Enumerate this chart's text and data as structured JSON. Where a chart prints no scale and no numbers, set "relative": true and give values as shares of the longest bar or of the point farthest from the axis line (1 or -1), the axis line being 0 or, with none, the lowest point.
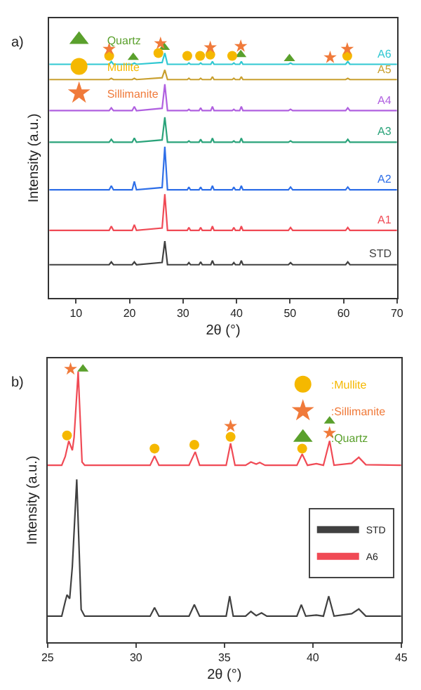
{
  "chart_data": [
    {
      "type": "line",
      "title": "a)",
      "xlabel": "2θ (°)",
      "ylabel": "Intensity (a.u.)",
      "relative": true,
      "xlim": [
        5,
        70
      ],
      "xticks": [
        10,
        20,
        30,
        40,
        50,
        60,
        70
      ],
      "legend": "top left",
      "x": [
        5,
        16.2,
        16.6,
        17,
        20.5,
        20.9,
        21.3,
        26.1,
        26.6,
        27.1,
        30.8,
        31.1,
        31.4,
        33,
        33.3,
        33.6,
        35.2,
        35.5,
        35.8,
        39.2,
        39.5,
        39.8,
        40.6,
        40.9,
        41.2,
        49.7,
        50.1,
        50.5,
        60.4,
        60.8,
        61.2,
        70
      ],
      "series": [
        {
          "name": "STD",
          "color": "#404040",
          "values": [
            0.131,
            0.131,
            0.142,
            0.131,
            0.131,
            0.142,
            0.131,
            0.14,
            0.224,
            0.131,
            0.131,
            0.139,
            0.131,
            0.131,
            0.142,
            0.131,
            0.131,
            0.147,
            0.131,
            0.131,
            0.139,
            0.131,
            0.131,
            0.147,
            0.131,
            0.131,
            0.139,
            0.131,
            0.131,
            0.142,
            0.131,
            0.131
          ]
        },
        {
          "name": "A1",
          "color": "#f04a55",
          "values": [
            0.266,
            0.266,
            0.282,
            0.266,
            0.266,
            0.288,
            0.266,
            0.275,
            0.408,
            0.266,
            0.266,
            0.277,
            0.266,
            0.266,
            0.277,
            0.266,
            0.266,
            0.282,
            0.266,
            0.266,
            0.277,
            0.266,
            0.266,
            0.282,
            0.266,
            0.266,
            0.277,
            0.266,
            0.266,
            0.277,
            0.266,
            0.266
          ]
        },
        {
          "name": "A2",
          "color": "#2f6fe8",
          "values": [
            0.425,
            0.425,
            0.441,
            0.425,
            0.425,
            0.458,
            0.425,
            0.434,
            0.594,
            0.425,
            0.425,
            0.436,
            0.425,
            0.425,
            0.436,
            0.425,
            0.425,
            0.441,
            0.425,
            0.425,
            0.436,
            0.425,
            0.425,
            0.441,
            0.425,
            0.425,
            0.436,
            0.425,
            0.425,
            0.436,
            0.425,
            0.425
          ]
        },
        {
          "name": "A3",
          "color": "#2aa37a",
          "values": [
            0.612,
            0.612,
            0.623,
            0.612,
            0.612,
            0.628,
            0.612,
            0.621,
            0.71,
            0.612,
            0.612,
            0.617,
            0.612,
            0.612,
            0.623,
            0.612,
            0.612,
            0.628,
            0.612,
            0.612,
            0.617,
            0.612,
            0.612,
            0.628,
            0.612,
            0.612,
            0.617,
            0.612,
            0.612,
            0.623,
            0.612,
            0.612
          ]
        },
        {
          "name": "A4",
          "color": "#b060e0",
          "values": [
            0.736,
            0.736,
            0.747,
            0.736,
            0.736,
            0.752,
            0.736,
            0.745,
            0.84,
            0.736,
            0.736,
            0.741,
            0.736,
            0.736,
            0.747,
            0.736,
            0.736,
            0.752,
            0.736,
            0.736,
            0.741,
            0.736,
            0.736,
            0.752,
            0.736,
            0.736,
            0.741,
            0.736,
            0.736,
            0.747,
            0.736,
            0.736
          ]
        },
        {
          "name": "A5",
          "color": "#c9a030",
          "values": [
            0.858,
            0.858,
            0.863,
            0.858,
            0.858,
            0.863,
            0.858,
            0.865,
            0.896,
            0.858,
            0.858,
            0.863,
            0.858,
            0.858,
            0.863,
            0.858,
            0.858,
            0.869,
            0.858,
            0.858,
            0.863,
            0.858,
            0.858,
            0.869,
            0.858,
            0.858,
            0.858,
            0.858,
            0.858,
            0.863,
            0.858,
            0.858
          ]
        },
        {
          "name": "A6",
          "color": "#30c8d2",
          "values": [
            0.918,
            0.918,
            0.929,
            0.918,
            0.918,
            0.923,
            0.918,
            0.925,
            0.962,
            0.918,
            0.918,
            0.923,
            0.918,
            0.918,
            0.923,
            0.918,
            0.918,
            0.929,
            0.918,
            0.918,
            0.923,
            0.918,
            0.918,
            0.929,
            0.918,
            0.918,
            0.923,
            0.918,
            0.918,
            0.929,
            0.918,
            0.918
          ]
        },
        {
          "name": "Quartz",
          "type": "scatter",
          "marker": "triangle",
          "color": "#5aa02c",
          "x": [
            20.7,
            26.5,
            40.8,
            49.9
          ],
          "values": [
            0.945,
            0.984,
            0.956,
            0.94
          ]
        },
        {
          "name": "Mullite",
          "type": "scatter",
          "marker": "circle",
          "color": "#f5b800",
          "x": [
            16.2,
            25.4,
            30.8,
            33.2,
            35.1,
            39.2,
            60.7
          ],
          "values": [
            0.951,
            0.962,
            0.951,
            0.951,
            0.956,
            0.951,
            0.951
          ]
        },
        {
          "name": "Sillimanite",
          "type": "scatter",
          "marker": "star",
          "color": "#f07a3a",
          "x": [
            16.2,
            25.8,
            35.1,
            40.8,
            57.5,
            60.7
          ],
          "values": [
            0.978,
            1,
            0.984,
            0.989,
            0.945,
            0.978
          ]
        }
      ]
    },
    {
      "type": "line",
      "title": "b)",
      "xlabel": "2θ (°)",
      "ylabel": "Intensity (a.u.)",
      "relative": true,
      "xlim": [
        25,
        45
      ],
      "xticks": [
        25,
        30,
        35,
        40,
        45
      ],
      "legend": "right",
      "series": [
        {
          "name": "STD",
          "color": "#404040",
          "x": [
            25,
            25.8,
            26.0,
            26.1,
            26.25,
            26.4,
            26.65,
            26.9,
            27.1,
            30.8,
            31.05,
            31.3,
            33.0,
            33.3,
            33.6,
            35.1,
            35.3,
            35.5,
            36.2,
            36.5,
            36.8,
            37.1,
            37.4,
            39.1,
            39.35,
            39.6,
            40.2,
            40.6,
            40.9,
            41.2,
            42.2,
            42.6,
            43,
            45
          ],
          "values": [
            0.096,
            0.096,
            0.15,
            0.174,
            0.16,
            0.277,
            0.596,
            0.12,
            0.096,
            0.096,
            0.127,
            0.096,
            0.096,
            0.138,
            0.096,
            0.096,
            0.169,
            0.096,
            0.096,
            0.113,
            0.098,
            0.108,
            0.096,
            0.096,
            0.138,
            0.096,
            0.1,
            0.096,
            0.169,
            0.096,
            0.105,
            0.122,
            0.096,
            0.096
          ]
        },
        {
          "name": "A6",
          "color": "#f04a55",
          "x": [
            25,
            25.8,
            26.0,
            26.2,
            26.4,
            26.5,
            26.73,
            26.95,
            27.1,
            30.8,
            31.05,
            31.3,
            33.0,
            33.35,
            33.6,
            35.1,
            35.35,
            35.6,
            36.2,
            36.5,
            36.8,
            37.0,
            37.3,
            39.1,
            39.4,
            39.7,
            40.2,
            40.6,
            40.95,
            41.2,
            42.2,
            42.6,
            43,
            45
          ],
          "values": [
            0.648,
            0.648,
            0.68,
            0.737,
            0.703,
            0.75,
            0.99,
            0.66,
            0.648,
            0.648,
            0.682,
            0.648,
            0.648,
            0.697,
            0.648,
            0.648,
            0.728,
            0.648,
            0.648,
            0.66,
            0.652,
            0.658,
            0.648,
            0.648,
            0.689,
            0.648,
            0.654,
            0.648,
            0.737,
            0.648,
            0.655,
            0.677,
            0.65,
            0.648
          ]
        },
        {
          "name": ":Mullite",
          "type": "scatter",
          "marker": "circle",
          "color": "#f5b800",
          "x": [
            26.1,
            31.05,
            33.3,
            35.35,
            39.4
          ],
          "values": [
            0.757,
            0.709,
            0.723,
            0.752,
            0.709
          ]
        },
        {
          "name": ":Sillimanite",
          "type": "scatter",
          "marker": "star",
          "color": "#f07a3a",
          "x": [
            26.3,
            35.35,
            40.95
          ],
          "values": [
            1,
            0.791,
            0.766
          ]
        },
        {
          "name": ":Quartz",
          "type": "scatter",
          "marker": "triangle",
          "color": "#5aa02c",
          "x": [
            27.0,
            40.95
          ],
          "values": [
            1,
            0.81
          ]
        }
      ]
    }
  ]
}
